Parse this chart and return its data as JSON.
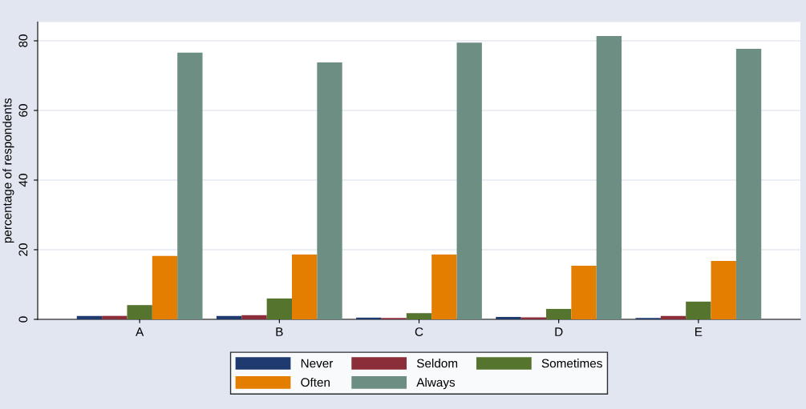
{
  "chart_data": {
    "type": "bar",
    "ylabel": "percentage of respondents",
    "categories": [
      "A",
      "B",
      "C",
      "D",
      "E"
    ],
    "series": [
      {
        "name": "Never",
        "color": "#1f3a6e",
        "values": [
          1.0,
          1.0,
          0.5,
          0.7,
          0.4
        ]
      },
      {
        "name": "Seldom",
        "color": "#8b2e3a",
        "values": [
          1.0,
          1.2,
          0.4,
          0.6,
          1.0
        ]
      },
      {
        "name": "Sometimes",
        "color": "#55752f",
        "values": [
          4.1,
          6.0,
          1.8,
          3.0,
          5.1
        ]
      },
      {
        "name": "Often",
        "color": "#e37e00",
        "values": [
          18.2,
          18.6,
          18.6,
          15.4,
          16.8
        ]
      },
      {
        "name": "Always",
        "color": "#6d8f83",
        "values": [
          76.6,
          73.8,
          79.5,
          81.4,
          77.7
        ]
      }
    ],
    "ylim": [
      0,
      85.4
    ],
    "yticks": [
      0,
      20,
      40,
      60,
      80
    ],
    "grid": "y",
    "legend": "bottom"
  }
}
